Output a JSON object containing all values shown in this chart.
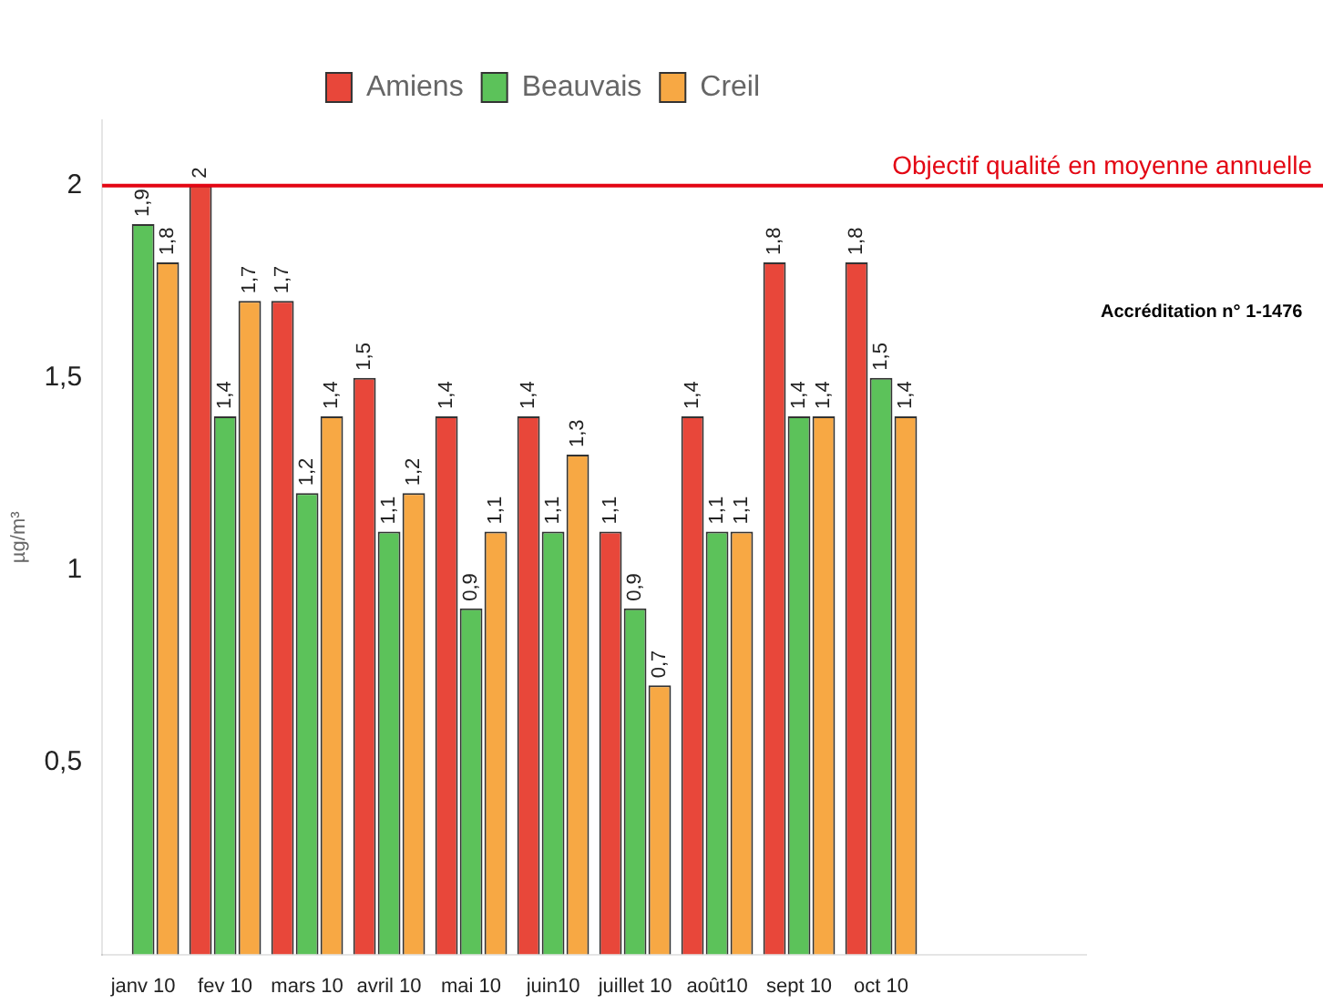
{
  "chart_data": {
    "type": "bar",
    "ylabel": "µg/m³",
    "categories": [
      "janv 10",
      "fev 10",
      "mars 10",
      "avril 10",
      "mai 10",
      "juin10",
      "juillet 10",
      "août10",
      "sept 10",
      "oct 10",
      null,
      null
    ],
    "series": [
      {
        "name": "Amiens",
        "color": "#e8473a",
        "values": [
          null,
          2,
          1.7,
          1.5,
          1.4,
          1.4,
          1.1,
          1.4,
          1.8,
          1.8,
          null,
          null
        ],
        "value_labels": [
          null,
          "2",
          "1,7",
          "1,5",
          "1,4",
          "1,4",
          "1,1",
          "1,4",
          "1,8",
          "1,8",
          null,
          null
        ]
      },
      {
        "name": "Beauvais",
        "color": "#5cc25a",
        "values": [
          1.9,
          1.4,
          1.2,
          1.1,
          0.9,
          1.1,
          0.9,
          1.1,
          1.4,
          1.5,
          null,
          null
        ],
        "value_labels": [
          "1,9",
          "1,4",
          "1,2",
          "1,1",
          "0,9",
          "1,1",
          "0,9",
          "1,1",
          "1,4",
          "1,5",
          null,
          null
        ]
      },
      {
        "name": "Creil",
        "color": "#f7a844",
        "values": [
          1.8,
          1.7,
          1.4,
          1.2,
          1.1,
          1.3,
          0.7,
          1.1,
          1.4,
          1.4,
          null,
          null
        ],
        "value_labels": [
          "1,8",
          "1,7",
          "1,4",
          "1,2",
          "1,1",
          "1,3",
          "0,7",
          "1,1",
          "1,4",
          "1,4",
          null,
          null
        ]
      }
    ],
    "ylim": [
      0,
      2.17
    ],
    "yticks": [
      {
        "value": 0.5,
        "label": "0,5"
      },
      {
        "value": 1,
        "label": "1"
      },
      {
        "value": 1.5,
        "label": "1,5"
      },
      {
        "value": 2,
        "label": "2"
      }
    ],
    "ref_lines": [
      {
        "axis": "y",
        "value": 2,
        "label": "Objectif qualité en moyenne annuelle",
        "color": "#e30613"
      }
    ],
    "annotations": [
      "Accréditation n° 1-1476"
    ],
    "legend": "top",
    "grid": false
  }
}
